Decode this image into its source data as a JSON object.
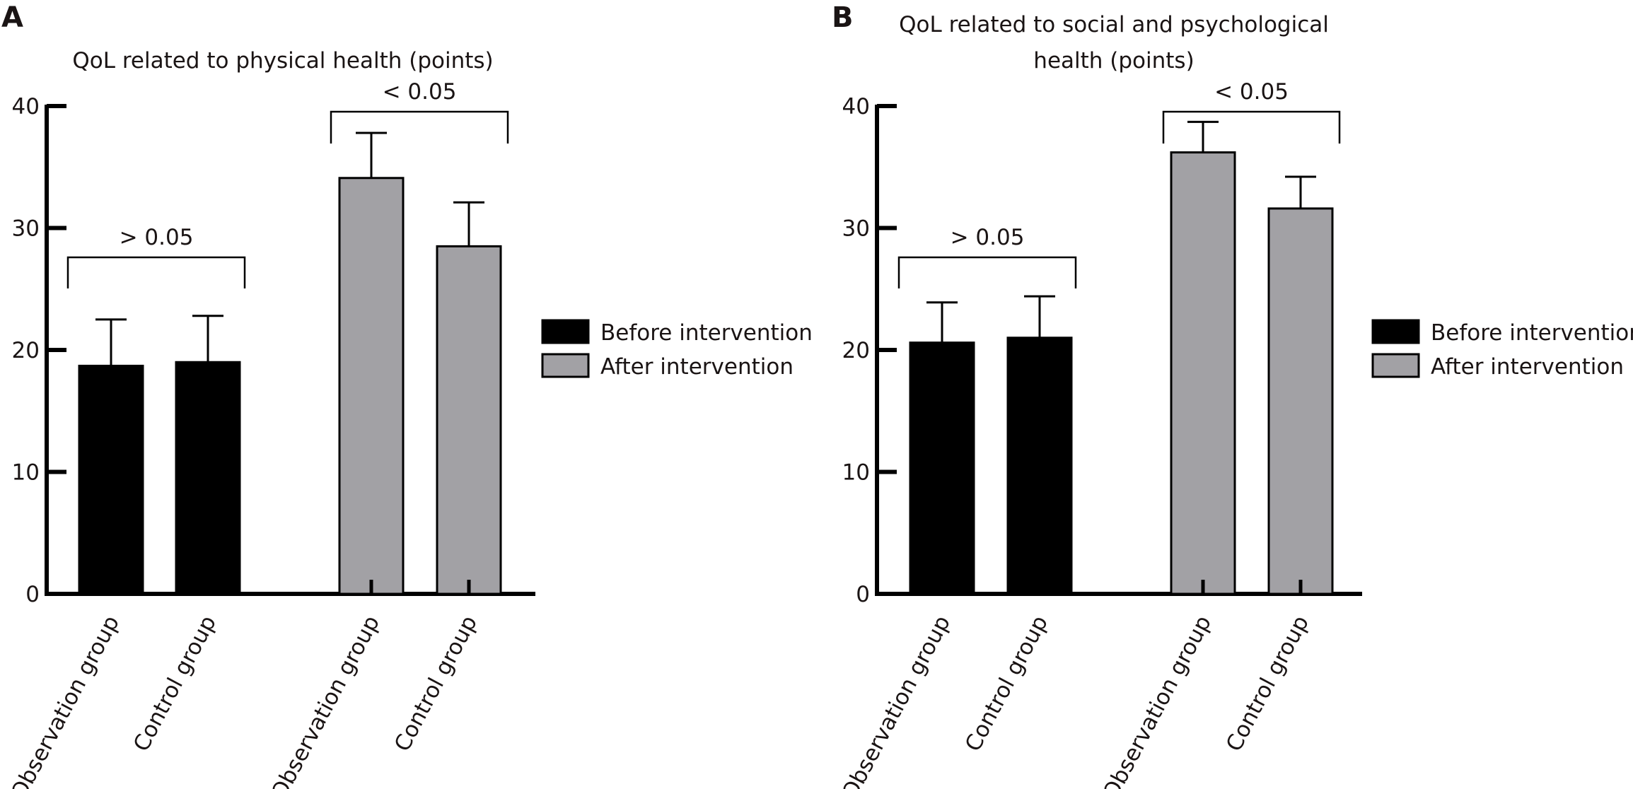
{
  "colors": {
    "before": "#000000",
    "after": "#a2a1a5",
    "axis": "#000000"
  },
  "legend": {
    "placement": "right",
    "items": [
      "Before intervention",
      "After intervention"
    ]
  },
  "chart_data": [
    {
      "panel_label": "A",
      "type": "bar",
      "title": "QoL related to physical health (points)",
      "title_lines": [
        "QoL related to physical health (points)"
      ],
      "categories": [
        "Observation group",
        "Control group",
        "Observation group",
        "Control group"
      ],
      "series": [
        {
          "name": "Before intervention",
          "values": [
            18.7,
            19.0,
            null,
            null
          ],
          "errors": [
            3.8,
            3.8,
            null,
            null
          ]
        },
        {
          "name": "After intervention",
          "values": [
            null,
            null,
            34.1,
            28.5
          ],
          "errors": [
            null,
            null,
            3.7,
            3.6
          ]
        }
      ],
      "ylim": [
        0,
        40
      ],
      "yticks": [
        "0",
        "10",
        "20",
        "30",
        "40"
      ],
      "annotations": [
        {
          "text": "> 0.05",
          "spans": [
            0,
            1
          ]
        },
        {
          "text": "< 0.05",
          "spans": [
            2,
            3
          ]
        }
      ]
    },
    {
      "panel_label": "B",
      "type": "bar",
      "title": "QoL related to social and psychological health (points)",
      "title_lines": [
        "QoL related to social and psychological",
        "health (points)"
      ],
      "categories": [
        "Observation group",
        "Control group",
        "Observation group",
        "Control group"
      ],
      "series": [
        {
          "name": "Before intervention",
          "values": [
            20.6,
            21.0,
            null,
            null
          ],
          "errors": [
            3.3,
            3.4,
            null,
            null
          ]
        },
        {
          "name": "After intervention",
          "values": [
            null,
            null,
            36.2,
            31.6
          ],
          "errors": [
            null,
            null,
            2.5,
            2.6
          ]
        }
      ],
      "ylim": [
        0,
        40
      ],
      "yticks": [
        "0",
        "10",
        "20",
        "30",
        "40"
      ],
      "annotations": [
        {
          "text": "> 0.05",
          "spans": [
            0,
            1
          ]
        },
        {
          "text": "< 0.05",
          "spans": [
            2,
            3
          ]
        }
      ]
    }
  ]
}
